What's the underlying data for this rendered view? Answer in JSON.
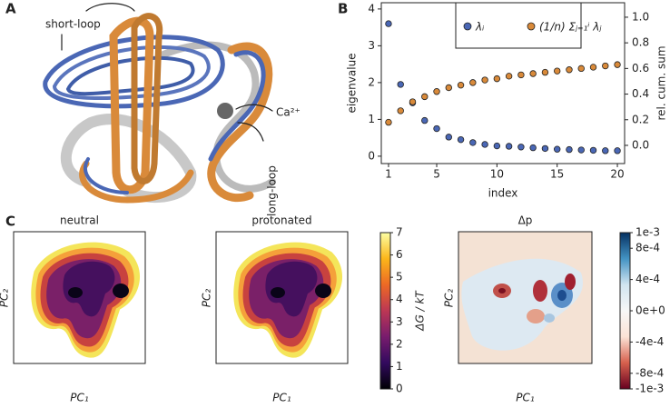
{
  "panel_labels": [
    "A",
    "B",
    "C"
  ],
  "structure": {
    "annotations": [
      "short-loop",
      "Ca²⁺",
      "long-loop"
    ]
  },
  "maps": [
    {
      "title": "neutral",
      "xlabel": "PC₁",
      "ylabel": "PC₂"
    },
    {
      "title": "protonated",
      "xlabel": "PC₁",
      "ylabel": "PC₂"
    },
    {
      "title": "Δp",
      "xlabel": "PC₁",
      "ylabel": "PC₂"
    }
  ],
  "chart_data": [
    {
      "type": "scatter",
      "xlabel": "index",
      "ylabel": "eigenvalue",
      "y2label": "rel. cum. sum",
      "x": [
        1,
        2,
        3,
        4,
        5,
        6,
        7,
        8,
        9,
        10,
        11,
        12,
        13,
        14,
        15,
        16,
        17,
        18,
        19,
        20
      ],
      "xlim": [
        0.4,
        20.6
      ],
      "xticks": [
        1,
        5,
        10,
        15,
        20
      ],
      "ylim": [
        -0.2,
        4.17
      ],
      "yticks": [
        0,
        1,
        2,
        3,
        4
      ],
      "y2lim": [
        -0.142,
        1.113
      ],
      "y2ticks": [
        {
          "value": 0,
          "label": "0.0"
        },
        {
          "value": 0.2,
          "label": "0.2"
        },
        {
          "value": 0.4,
          "label": "0.4"
        },
        {
          "value": 0.6,
          "label": "0.6"
        },
        {
          "value": 0.8,
          "label": "0.8"
        },
        {
          "value": 1,
          "label": "1.0"
        }
      ],
      "series": [
        {
          "name": "λᵢ",
          "color": "#4a67b5",
          "values": [
            3.6,
            1.95,
            1.45,
            0.97,
            0.75,
            0.52,
            0.45,
            0.37,
            0.32,
            0.28,
            0.27,
            0.25,
            0.23,
            0.21,
            0.19,
            0.18,
            0.17,
            0.16,
            0.15,
            0.15
          ]
        },
        {
          "name": "(1/n) Σⱼ₌₁ⁱ λⱼ",
          "color": "#d98a3a",
          "axis": "y2",
          "values": [
            0.18,
            0.27,
            0.34,
            0.38,
            0.42,
            0.45,
            0.47,
            0.49,
            0.51,
            0.52,
            0.54,
            0.55,
            0.56,
            0.57,
            0.58,
            0.59,
            0.6,
            0.61,
            0.62,
            0.63
          ]
        }
      ]
    },
    {
      "type": "colorbar",
      "label": "ΔG / kT",
      "ylim": [
        0,
        7
      ],
      "yticks": [
        0,
        1,
        2,
        3,
        4,
        5,
        6,
        7
      ],
      "colors": [
        "#000004",
        "#320a5e",
        "#781c6d",
        "#bc3754",
        "#ed6925",
        "#fbb61a",
        "#fcffa4"
      ]
    },
    {
      "type": "colorbar",
      "ylim": [
        -0.001,
        0.001
      ],
      "yticks": [
        {
          "value": 0.001,
          "label": "1e-3"
        },
        {
          "value": 0.0008,
          "label": "8e-4"
        },
        {
          "value": 0.0004,
          "label": "4e-4"
        },
        {
          "value": 0,
          "label": "0e+0"
        },
        {
          "value": -0.0004,
          "label": "-4e-4"
        },
        {
          "value": -0.0008,
          "label": "-8e-4"
        },
        {
          "value": -0.001,
          "label": "-1e-3"
        }
      ],
      "colors": [
        "#67001f",
        "#d6604d",
        "#fbe3d6",
        "#f7f7f7",
        "#d1e5f0",
        "#4393c3",
        "#053061"
      ]
    }
  ]
}
